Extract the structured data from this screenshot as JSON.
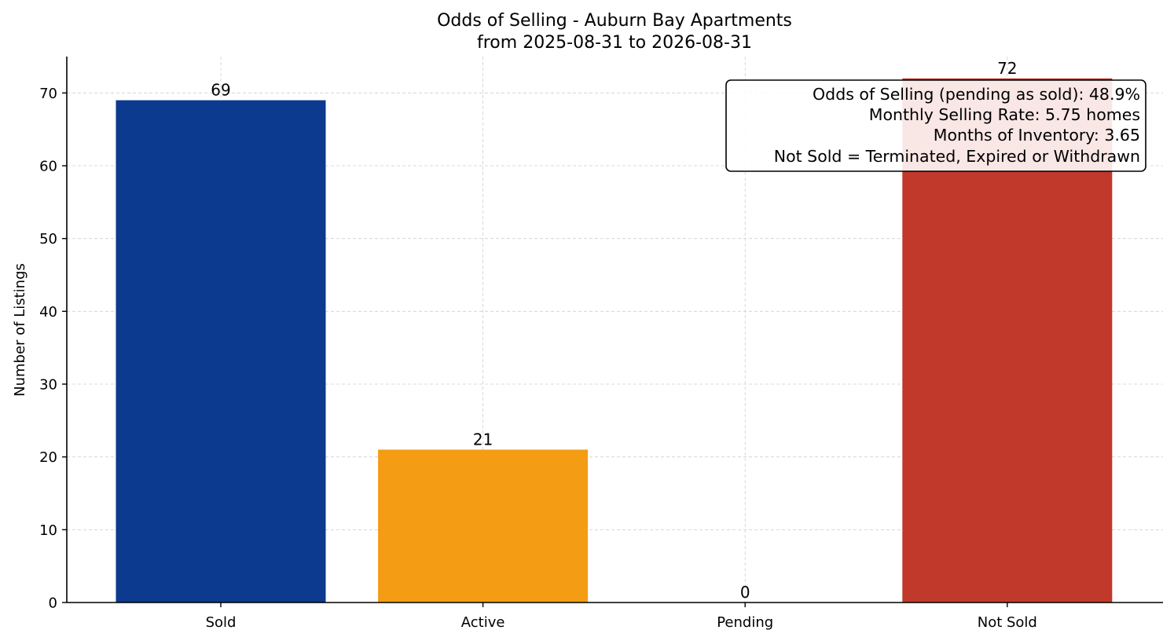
{
  "chart_data": {
    "type": "bar",
    "title": "Odds of Selling - Auburn Bay Apartments",
    "subtitle": "from 2025-08-31 to 2026-08-31",
    "xlabel": "",
    "ylabel": "Number of Listings",
    "categories": [
      "Sold",
      "Active",
      "Pending",
      "Not Sold"
    ],
    "values": [
      69,
      21,
      0,
      72
    ],
    "colors": [
      "#0b3a8e",
      "#f39c14",
      "#27ae60",
      "#c0392b"
    ],
    "ylim": [
      0,
      75
    ],
    "yticks": [
      0,
      10,
      20,
      30,
      40,
      50,
      60,
      70
    ],
    "grid": true,
    "data_labels": true,
    "info_box": {
      "placement": "top-right",
      "lines": [
        "Odds of Selling (pending as sold): 48.9%",
        "Monthly Selling Rate: 5.75 homes",
        "Months of Inventory: 3.65",
        "Not Sold = Terminated, Expired or Withdrawn"
      ]
    }
  }
}
